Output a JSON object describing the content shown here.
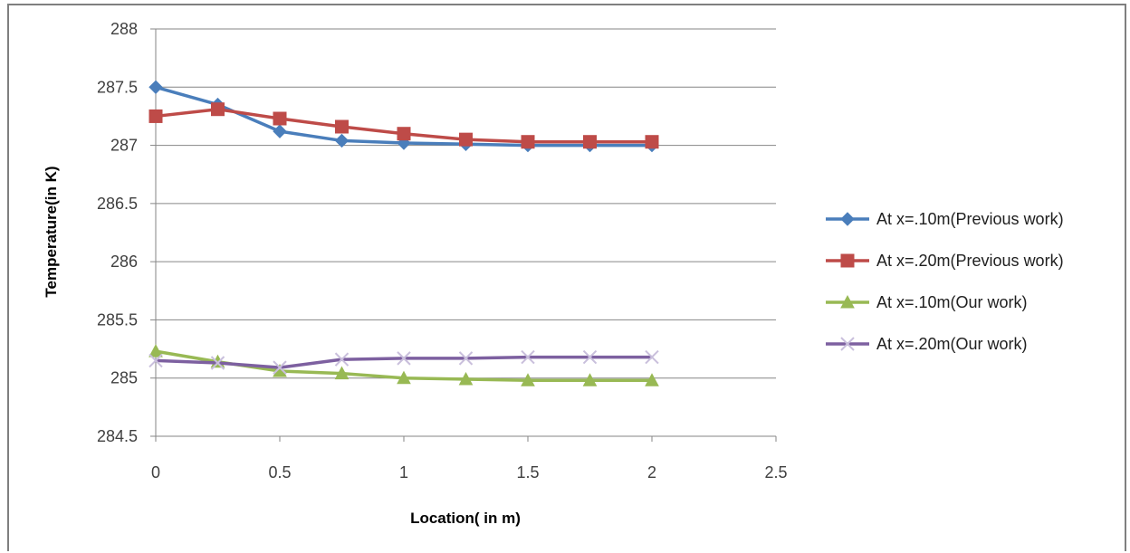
{
  "chart_data": {
    "type": "line",
    "title": "",
    "xlabel": "Location( in m)",
    "ylabel": "Temperature(in K)",
    "xlim": [
      0,
      2.5
    ],
    "ylim": [
      284.5,
      288
    ],
    "xticks": [
      "0",
      "0.5",
      "1",
      "1.5",
      "2",
      "2.5"
    ],
    "yticks": [
      "284.5",
      "285",
      "285.5",
      "286",
      "286.5",
      "287",
      "287.5",
      "288"
    ],
    "grid": "horizontal",
    "legend_position": "right",
    "x": [
      0,
      0.25,
      0.5,
      0.75,
      1,
      1.25,
      1.5,
      1.75,
      2
    ],
    "series": [
      {
        "name": "At x=.10m(Previous work)",
        "color": "#4a7ebb",
        "marker": "diamond",
        "values": [
          287.5,
          287.35,
          287.12,
          287.04,
          287.02,
          287.01,
          287.0,
          287.0,
          287.0
        ]
      },
      {
        "name": "At x=.20m(Previous work)",
        "color": "#be4b48",
        "marker": "square",
        "values": [
          287.25,
          287.31,
          287.23,
          287.16,
          287.1,
          287.05,
          287.03,
          287.03,
          287.03
        ]
      },
      {
        "name": "At x=.10m(Our work)",
        "color": "#98b954",
        "marker": "triangle",
        "values": [
          285.23,
          285.14,
          285.06,
          285.04,
          285.0,
          284.99,
          284.98,
          284.98,
          284.98
        ]
      },
      {
        "name": "At x=.20m(Our work)",
        "color": "#7d60a0",
        "marker": "x",
        "values": [
          285.15,
          285.13,
          285.09,
          285.16,
          285.17,
          285.17,
          285.18,
          285.18,
          285.18
        ]
      }
    ]
  }
}
